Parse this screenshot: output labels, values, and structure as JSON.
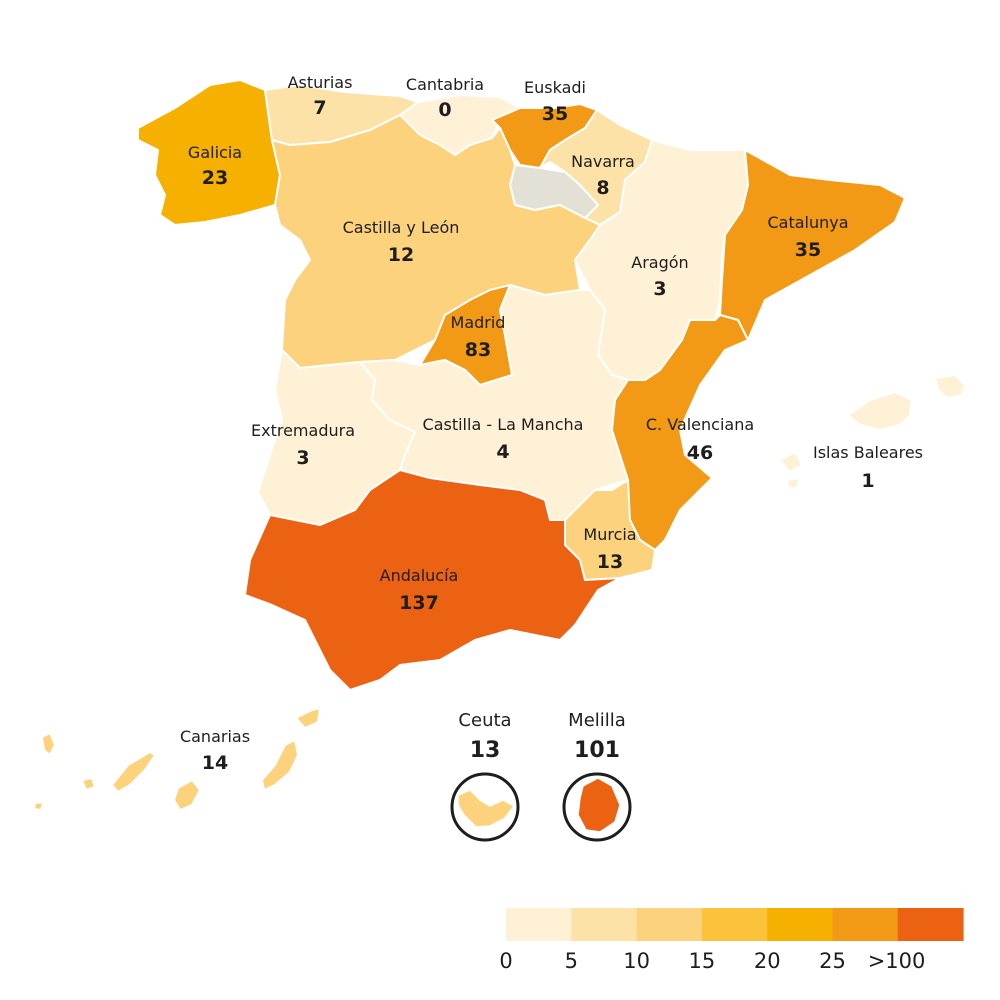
{
  "regions": [
    {
      "id": "galicia",
      "name": "Galicia",
      "value": "23",
      "color": "#f5b000"
    },
    {
      "id": "asturias",
      "name": "Asturias",
      "value": "7",
      "color": "#fde2a8"
    },
    {
      "id": "cantabria",
      "name": "Cantabria",
      "value": "0",
      "color": "#fff1d6"
    },
    {
      "id": "euskadi",
      "name": "Euskadi",
      "value": "35",
      "color": "#f29a15"
    },
    {
      "id": "navarra",
      "name": "Navarra",
      "value": "8",
      "color": "#fde2a8"
    },
    {
      "id": "castilla-y-leon",
      "name": "Castilla y León",
      "value": "12",
      "color": "#fdd27d"
    },
    {
      "id": "la-rioja",
      "name": "",
      "value": "",
      "color": "#e3e1d6"
    },
    {
      "id": "aragon",
      "name": "Aragón",
      "value": "3",
      "color": "#fff1d6"
    },
    {
      "id": "catalunya",
      "name": "Catalunya",
      "value": "35",
      "color": "#f29a15"
    },
    {
      "id": "madrid",
      "name": "Madrid",
      "value": "83",
      "color": "#f29a15"
    },
    {
      "id": "extremadura",
      "name": "Extremadura",
      "value": "3",
      "color": "#fff1d6"
    },
    {
      "id": "castilla-la-mancha",
      "name": "Castilla - La Mancha",
      "value": "4",
      "color": "#fff1d6"
    },
    {
      "id": "valenciana",
      "name": "C. Valenciana",
      "value": "46",
      "color": "#f29a15"
    },
    {
      "id": "murcia",
      "name": "Murcia",
      "value": "13",
      "color": "#fdd27d"
    },
    {
      "id": "andalucia",
      "name": "Andalucía",
      "value": "137",
      "color": "#ec6213"
    },
    {
      "id": "baleares",
      "name": "Islas Baleares",
      "value": "1",
      "color": "#fff1d6"
    },
    {
      "id": "canarias",
      "name": "Canarias",
      "value": "14",
      "color": "#fdd27d"
    }
  ],
  "insets": [
    {
      "id": "ceuta",
      "name": "Ceuta",
      "value": "13",
      "color": "#fdd27d"
    },
    {
      "id": "melilla",
      "name": "Melilla",
      "value": "101",
      "color": "#ec6213"
    }
  ],
  "legend": {
    "colors": [
      "#fff1d6",
      "#fde2a8",
      "#fdd27d",
      "#fcc23c",
      "#f5b000",
      "#f29a15",
      "#ec6213"
    ],
    "ticks": [
      "0",
      "5",
      "10",
      "15",
      "20",
      "25",
      ">100"
    ]
  }
}
